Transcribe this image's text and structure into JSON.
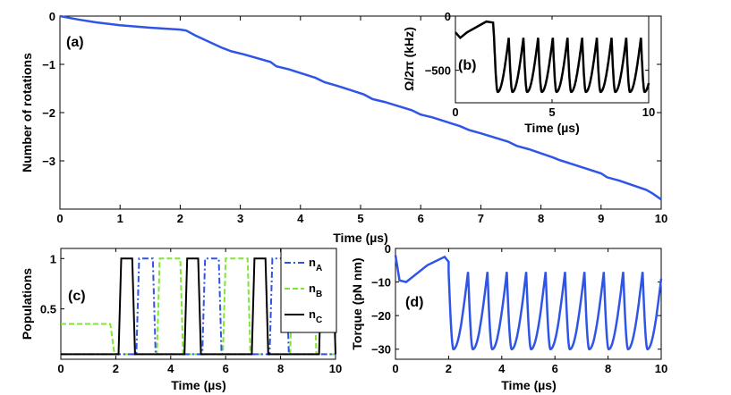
{
  "chart_data": [
    {
      "id": "a",
      "type": "line",
      "panel_label": "(a)",
      "xlabel": "Time (µs)",
      "ylabel": "Number of rotations",
      "xlim": [
        0,
        10
      ],
      "ylim": [
        -4,
        0
      ],
      "xticks": [
        "0",
        "1",
        "2",
        "3",
        "4",
        "5",
        "6",
        "7",
        "8",
        "9",
        "10"
      ],
      "yticks": [
        "0",
        "−1",
        "−2",
        "−3"
      ],
      "series": [
        {
          "name": "rotations",
          "color": "#2f55e6",
          "x": [
            0,
            0.3,
            0.6,
            1.0,
            1.5,
            2.0,
            2.1,
            2.25,
            2.7,
            2.85,
            3.05,
            3.5,
            3.6,
            3.8,
            4.25,
            4.4,
            4.6,
            5.05,
            5.2,
            5.4,
            5.85,
            6.0,
            6.2,
            6.65,
            6.8,
            7.0,
            7.45,
            7.6,
            7.8,
            8.2,
            8.3,
            8.55,
            9.0,
            9.1,
            9.3,
            9.75,
            9.85,
            10.0
          ],
          "y": [
            0,
            -0.07,
            -0.13,
            -0.19,
            -0.24,
            -0.28,
            -0.3,
            -0.4,
            -0.66,
            -0.73,
            -0.79,
            -0.95,
            -1.04,
            -1.1,
            -1.28,
            -1.37,
            -1.44,
            -1.62,
            -1.72,
            -1.78,
            -1.95,
            -2.04,
            -2.1,
            -2.28,
            -2.36,
            -2.43,
            -2.6,
            -2.69,
            -2.76,
            -2.93,
            -2.98,
            -3.08,
            -3.26,
            -3.34,
            -3.41,
            -3.6,
            -3.67,
            -3.8
          ]
        }
      ]
    },
    {
      "id": "b",
      "type": "line",
      "panel_label": "(b)",
      "xlabel": "Time (µs)",
      "ylabel": "Ω/2π (kHz)",
      "xlim": [
        0,
        10
      ],
      "ylim": [
        -800,
        0
      ],
      "xticks": [
        "0",
        "5",
        "10"
      ],
      "yticks": [
        "0",
        "−500"
      ],
      "series": [
        {
          "name": "omega",
          "color": "#000000",
          "pattern": {
            "initial": [
              [
                0,
                -150
              ],
              [
                0.25,
                -200
              ],
              [
                0.6,
                -150
              ],
              [
                1.6,
                -50
              ],
              [
                1.95,
                -60
              ]
            ],
            "periods": 10,
            "start": 2.0,
            "period": 0.76,
            "min": -700,
            "max": -200
          }
        }
      ]
    },
    {
      "id": "c",
      "type": "line",
      "panel_label": "(c)",
      "xlabel": "Time (µs)",
      "ylabel": "Populations",
      "xlim": [
        0,
        10
      ],
      "ylim": [
        0,
        1.1
      ],
      "xticks": [
        "0",
        "2",
        "4",
        "6",
        "8",
        "10"
      ],
      "yticks": [
        "0.5",
        "1"
      ],
      "legend": [
        {
          "label": "n",
          "sub": "A",
          "color": "#2f55e6",
          "dash": "dashdot"
        },
        {
          "label": "n",
          "sub": "B",
          "color": "#7fe632",
          "dash": "dashed"
        },
        {
          "label": "n",
          "sub": "C",
          "color": "#000000",
          "dash": "solid"
        }
      ],
      "pulses": {
        "C": [
          [
            2.1,
            2.7
          ],
          [
            4.5,
            5.1
          ],
          [
            6.95,
            7.55
          ],
          [
            9.4,
            10.0
          ]
        ],
        "A": [
          [
            2.75,
            3.45
          ],
          [
            5.15,
            5.85
          ],
          [
            7.6,
            8.3
          ]
        ],
        "B": [
          [
            3.5,
            4.45
          ],
          [
            5.9,
            6.9
          ],
          [
            8.35,
            9.3
          ]
        ]
      },
      "initial": {
        "A": 0.05,
        "B": 0.35,
        "C": 0.05
      }
    },
    {
      "id": "d",
      "type": "line",
      "panel_label": "(d)",
      "xlabel": "Time (µs)",
      "ylabel": "Torque (pN nm)",
      "xlim": [
        0,
        10
      ],
      "ylim": [
        -33,
        0
      ],
      "xticks": [
        "0",
        "2",
        "4",
        "6",
        "8",
        "10"
      ],
      "yticks": [
        "0",
        "−10",
        "−20",
        "−30"
      ],
      "series": [
        {
          "name": "torque",
          "color": "#2f55e6",
          "pattern": {
            "initial": [
              [
                0,
                -2
              ],
              [
                0.15,
                -9.5
              ],
              [
                0.4,
                -10
              ],
              [
                1.2,
                -5
              ],
              [
                1.85,
                -2.5
              ],
              [
                2.0,
                -4
              ]
            ],
            "periods": 11,
            "start": 2.0,
            "period": 0.73,
            "min": -30,
            "max": -7
          }
        }
      ]
    }
  ]
}
